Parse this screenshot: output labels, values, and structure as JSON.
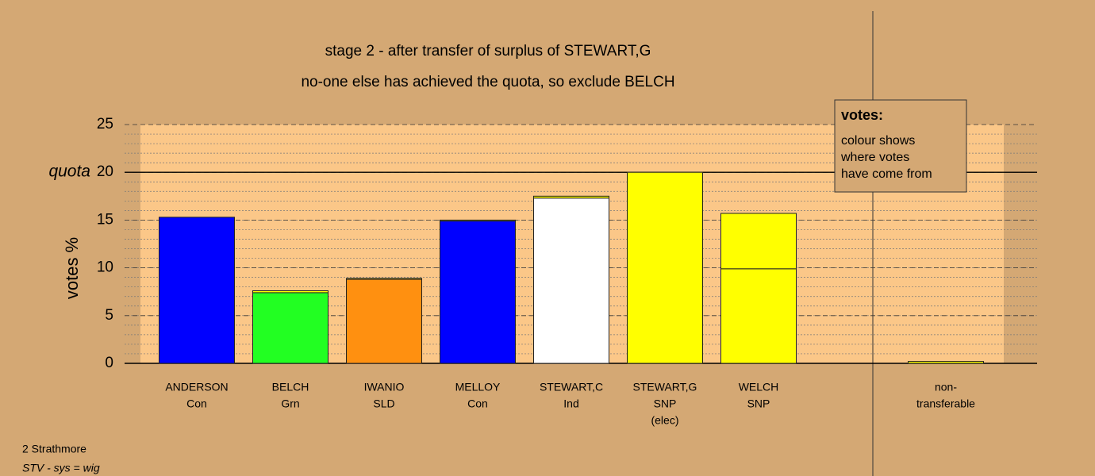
{
  "chart_data": {
    "type": "stacked-bar",
    "title": "stage 2 - after transfer of surplus of STEWART,G",
    "subtitle": "no-one else has achieved the quota, so exclude BELCH",
    "y_label": "votes %",
    "quota_label": "quota",
    "quota": 20,
    "categories": [
      [
        "ANDERSON",
        "Con"
      ],
      [
        "BELCH",
        "Grn"
      ],
      [
        "IWANIO",
        "SLD"
      ],
      [
        "MELLOY",
        "Con"
      ],
      [
        "STEWART,C",
        "Ind"
      ],
      [
        "STEWART,G",
        "SNP",
        "(elec)"
      ],
      [
        "WELCH",
        "SNP"
      ],
      [
        "non-",
        "transferable"
      ]
    ],
    "separate_last": true,
    "series": [
      {
        "colors": [
          "#0000ff",
          "#22ff22",
          "#ff9010",
          "#0000ff",
          "#ffffff",
          "#ffff00",
          "#ffff00",
          "#ffff00"
        ],
        "values": [
          15.3,
          7.4,
          8.8,
          14.9,
          17.3,
          20,
          9.9,
          0
        ]
      },
      {
        "color": "#ffff00",
        "values": [
          0,
          0.2,
          0.1,
          0.1,
          0.2,
          0,
          5.8,
          0.2
        ]
      }
    ],
    "ylim": [
      0,
      25
    ],
    "yticks": [
      0,
      5,
      10,
      15,
      20,
      25
    ],
    "grid": true,
    "note": {
      "title": "votes:",
      "lines": [
        "colour shows",
        "where votes",
        "have come from"
      ]
    },
    "footer": [
      "2 Strathmore",
      "STV - sys = wig"
    ]
  }
}
